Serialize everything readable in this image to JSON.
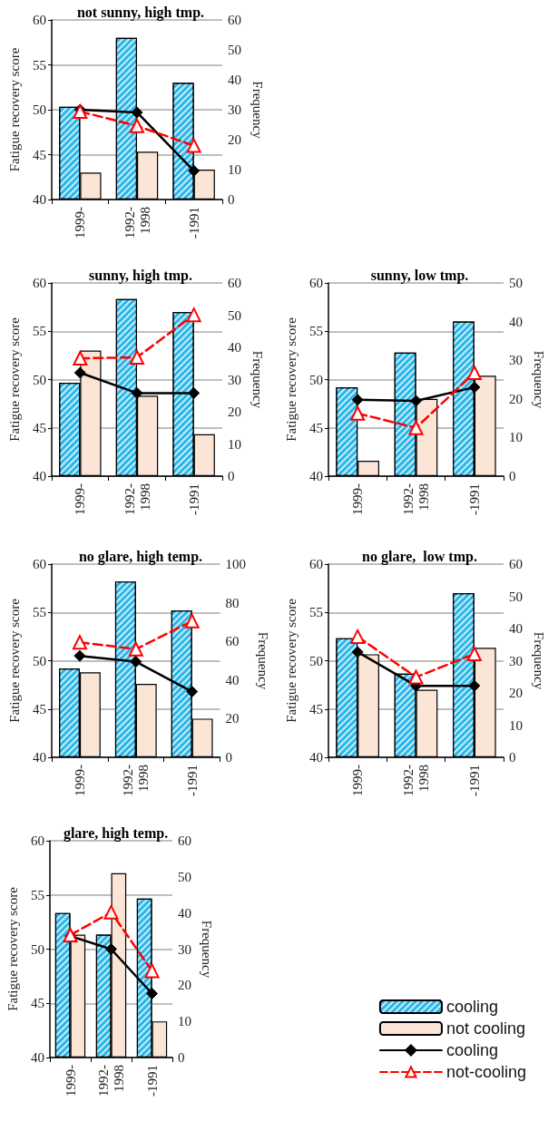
{
  "chart_data": [
    {
      "type": "bar",
      "title": "not sunny, high tmp.",
      "ylabel": "Fatigue recovery score",
      "y2label": "Frequency",
      "categories": [
        "1999-",
        "1992-\n1998",
        "-1991"
      ],
      "ylim": [
        40,
        60
      ],
      "yticks": [
        40,
        45,
        50,
        55,
        60
      ],
      "y2lim": [
        0,
        60
      ],
      "y2ticks": [
        0,
        10,
        20,
        30,
        40,
        50,
        60
      ],
      "grid": "y",
      "legend": false,
      "series": [
        {
          "axis": "y2",
          "color": "#29b6e8",
          "values": [
            31,
            54,
            39
          ]
        },
        {
          "axis": "y2",
          "color": "#fbe5d6",
          "values": [
            9,
            16,
            10
          ]
        },
        {
          "type": "line",
          "axis": "y",
          "color": "#000000",
          "marker": "diamond",
          "line_style": "solid",
          "values": [
            50.0,
            49.7,
            43.2
          ]
        },
        {
          "type": "line",
          "axis": "y",
          "color": "#ff0000",
          "marker": "triangle",
          "line_style": "dashed",
          "values": [
            49.8,
            48.2,
            46.0
          ]
        }
      ]
    },
    {
      "type": "bar",
      "title": "sunny, high tmp.",
      "ylabel": "Fatigue recovery score",
      "y2label": "Frequency",
      "categories": [
        "1999-",
        "1992-\n1998",
        "-1991"
      ],
      "ylim": [
        40,
        60
      ],
      "yticks": [
        40,
        45,
        50,
        55,
        60
      ],
      "y2lim": [
        0,
        60
      ],
      "y2ticks": [
        0,
        10,
        20,
        30,
        40,
        50,
        60
      ],
      "grid": "y",
      "legend": false,
      "series": [
        {
          "axis": "y2",
          "color": "#29b6e8",
          "values": [
            29,
            55,
            51
          ]
        },
        {
          "axis": "y2",
          "color": "#fbe5d6",
          "values": [
            39,
            25,
            13
          ]
        },
        {
          "type": "line",
          "axis": "y",
          "color": "#000000",
          "marker": "diamond",
          "line_style": "solid",
          "values": [
            50.7,
            48.6,
            48.6
          ]
        },
        {
          "type": "line",
          "axis": "y",
          "color": "#ff0000",
          "marker": "triangle",
          "line_style": "dashed",
          "values": [
            52.2,
            52.3,
            56.7
          ]
        }
      ]
    },
    {
      "type": "bar",
      "title": "sunny, low tmp.",
      "ylabel": "Fatigue recovery score",
      "y2label": "Frequency",
      "categories": [
        "1999-",
        "1992-\n1998",
        "-1991"
      ],
      "ylim": [
        40,
        60
      ],
      "yticks": [
        40,
        45,
        50,
        55,
        60
      ],
      "y2lim": [
        0,
        50
      ],
      "y2ticks": [
        0,
        10,
        20,
        30,
        40,
        50
      ],
      "grid": "y",
      "legend": false,
      "series": [
        {
          "axis": "y2",
          "color": "#29b6e8",
          "values": [
            23,
            32,
            40
          ]
        },
        {
          "axis": "y2",
          "color": "#fbe5d6",
          "values": [
            4,
            20,
            26
          ]
        },
        {
          "type": "line",
          "axis": "y",
          "color": "#000000",
          "marker": "diamond",
          "line_style": "solid",
          "values": [
            47.9,
            47.8,
            49.2
          ]
        },
        {
          "type": "line",
          "axis": "y",
          "color": "#ff0000",
          "marker": "triangle",
          "line_style": "dashed",
          "values": [
            46.5,
            45.0,
            50.7
          ]
        }
      ]
    },
    {
      "type": "bar",
      "title": "no glare, high temp.",
      "ylabel": "Fatigue recovery score",
      "y2label": "Frequency",
      "categories": [
        "1999-",
        "1992-\n1998",
        "-1991"
      ],
      "ylim": [
        40,
        60
      ],
      "yticks": [
        40,
        45,
        50,
        55,
        60
      ],
      "y2lim": [
        0,
        100
      ],
      "y2ticks": [
        0,
        20,
        40,
        60,
        80,
        100
      ],
      "grid": "y",
      "legend": false,
      "series": [
        {
          "axis": "y2",
          "color": "#29b6e8",
          "values": [
            46,
            91,
            76
          ]
        },
        {
          "axis": "y2",
          "color": "#fbe5d6",
          "values": [
            44,
            38,
            20
          ]
        },
        {
          "type": "line",
          "axis": "y",
          "color": "#000000",
          "marker": "diamond",
          "line_style": "solid",
          "values": [
            50.5,
            49.9,
            46.8
          ]
        },
        {
          "type": "line",
          "axis": "y",
          "color": "#ff0000",
          "marker": "triangle",
          "line_style": "dashed",
          "values": [
            51.9,
            51.2,
            54.1
          ]
        }
      ]
    },
    {
      "type": "bar",
      "title": "no glare,  low tmp.",
      "ylabel": "Fatigue recovery score",
      "y2label": "Frequency",
      "categories": [
        "1999-",
        "1992-\n1998",
        "-1991"
      ],
      "ylim": [
        40,
        60
      ],
      "yticks": [
        40,
        45,
        50,
        55,
        60
      ],
      "y2lim": [
        0,
        60
      ],
      "y2ticks": [
        0,
        10,
        20,
        30,
        40,
        50,
        60
      ],
      "grid": "y",
      "legend": false,
      "series": [
        {
          "axis": "y2",
          "color": "#29b6e8",
          "values": [
            37,
            26,
            51
          ]
        },
        {
          "axis": "y2",
          "color": "#fbe5d6",
          "values": [
            32,
            21,
            34
          ]
        },
        {
          "type": "line",
          "axis": "y",
          "color": "#000000",
          "marker": "diamond",
          "line_style": "solid",
          "values": [
            50.9,
            47.4,
            47.4
          ]
        },
        {
          "type": "line",
          "axis": "y",
          "color": "#ff0000",
          "marker": "triangle",
          "line_style": "dashed",
          "values": [
            52.5,
            48.3,
            50.7
          ]
        }
      ]
    },
    {
      "type": "bar",
      "title": "glare, high temp.",
      "ylabel": "Fatigue recovery score",
      "y2label": "Frequency",
      "categories": [
        "1999-",
        "1992-\n1998",
        "-1991"
      ],
      "ylim": [
        40,
        60
      ],
      "yticks": [
        40,
        45,
        50,
        55,
        60
      ],
      "y2lim": [
        0,
        60
      ],
      "y2ticks": [
        0,
        10,
        20,
        30,
        40,
        50,
        60
      ],
      "grid": "y",
      "legend": "right",
      "series": [
        {
          "name": "cooling",
          "axis": "y2",
          "color": "#29b6e8",
          "values": [
            40,
            34,
            44
          ]
        },
        {
          "name": "not cooling",
          "axis": "y2",
          "color": "#fbe5d6",
          "values": [
            34,
            51,
            10
          ]
        },
        {
          "name": "cooling",
          "type": "line",
          "axis": "y",
          "color": "#000000",
          "marker": "diamond",
          "line_style": "solid",
          "values": [
            51.2,
            50.0,
            45.9
          ]
        },
        {
          "name": "not-cooling",
          "type": "line",
          "axis": "y",
          "color": "#ff0000",
          "marker": "triangle",
          "line_style": "dashed",
          "values": [
            51.3,
            53.4,
            48.0
          ]
        }
      ]
    }
  ]
}
